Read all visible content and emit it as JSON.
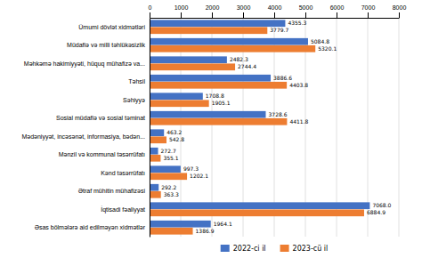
{
  "chart_data": {
    "type": "bar",
    "orientation": "horizontal",
    "categories": [
      "Ümumi dövlət xidmətləri",
      "Müdafiə və milli təhlükəsizlik",
      "Məhkəmə hakimiyyəti, hüquq mühafizə va...",
      "Təhsil",
      "Səhiyyə",
      "Sosial müdafiə və sosial təminat",
      "Mədəniyyət, incəsənət, informasiya, bədən...",
      "Mənzil və kommunal təsərrüfatı",
      "Kənd təsərrüfatı",
      "Ətraf mühitin mühafizəsi",
      "İqtisadi fəaliyyat",
      "Əsas bölmələrə aid edilməyən xidmətlər"
    ],
    "series": [
      {
        "name": "2022-ci il",
        "color": "#4472c4",
        "values": [
          4355.3,
          5084.8,
          2482.3,
          3886.6,
          1708.8,
          3728.6,
          463.2,
          272.7,
          997.3,
          292.2,
          7068.0,
          1964.1
        ],
        "value_labels": [
          "4355.3",
          "5084.8",
          "2482.3",
          "3886.6",
          "1708.8",
          "3728.6",
          "463.2",
          "272.7",
          "997.3",
          "292.2",
          "7068.0",
          "1964.1"
        ]
      },
      {
        "name": "2023-cü il",
        "color": "#ed7d31",
        "values": [
          3779.7,
          5320.1,
          2744.4,
          4403.8,
          1905.1,
          4411.8,
          542.8,
          355.1,
          1202.1,
          363.3,
          6884.9,
          1386.9
        ],
        "value_labels": [
          "3779.7",
          "5320.1",
          "2744.4",
          "4403.8",
          "1905.1",
          "4411.8",
          "542.8",
          "355.1",
          "1202.1",
          "363.3",
          "6884.9",
          "1386.9"
        ]
      }
    ],
    "xlim": [
      0,
      8000
    ],
    "xticks": [
      0,
      1000,
      2000,
      3000,
      4000,
      5000,
      6000,
      7000,
      8000
    ],
    "grid": true,
    "data_labels": true,
    "legend": "bottom"
  }
}
